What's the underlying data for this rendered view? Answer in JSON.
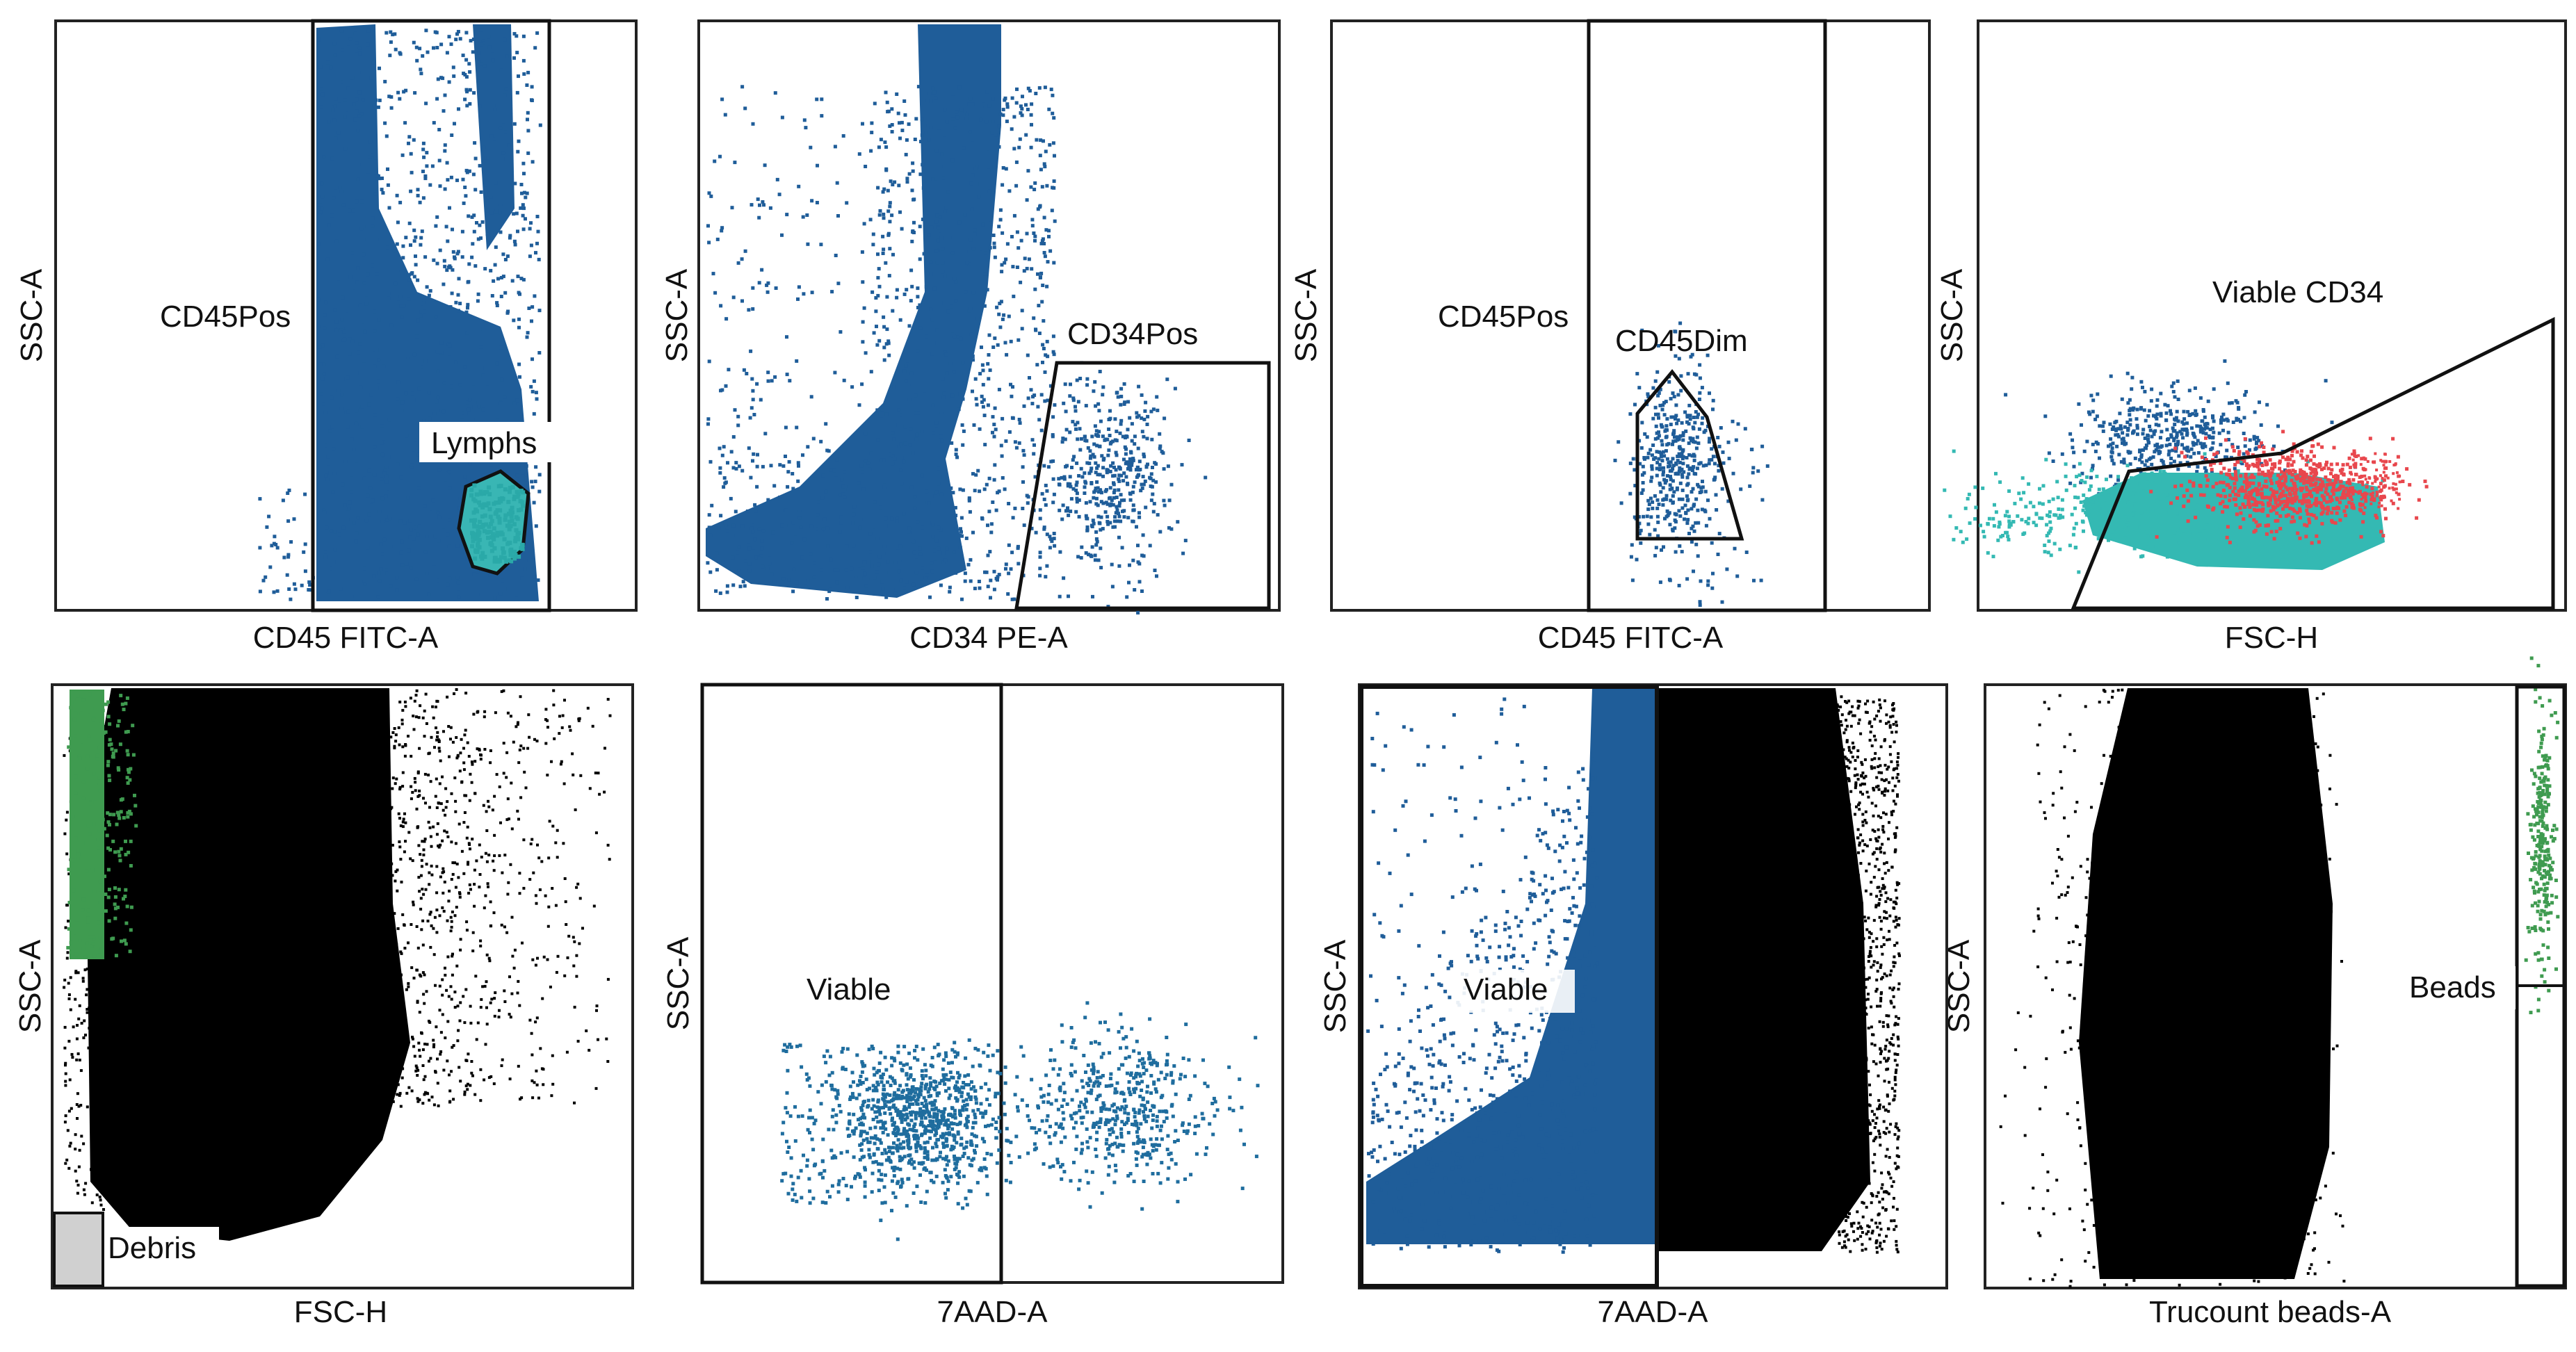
{
  "figure": {
    "panels": [
      {
        "id": "p1",
        "xlabel": "CD45 FITC-A",
        "ylabel": "SSC-A",
        "gates": [
          {
            "name": "CD45Pos",
            "shape": "rect"
          },
          {
            "name": "Lymphs",
            "shape": "polygon",
            "fill": "#39b6b4"
          }
        ],
        "populations": [
          {
            "name": "CD45 positive events",
            "color": "#1f5d99"
          },
          {
            "name": "Lymphs events",
            "color": "#2aa9a8"
          }
        ]
      },
      {
        "id": "p2",
        "xlabel": "CD34 PE-A",
        "ylabel": "SSC-A",
        "gates": [
          {
            "name": "CD34Pos",
            "shape": "polygon"
          }
        ],
        "populations": [
          {
            "name": "CD45Pos events",
            "color": "#1f5d99"
          }
        ]
      },
      {
        "id": "p3",
        "xlabel": "CD45 FITC-A",
        "ylabel": "SSC-A",
        "gates": [
          {
            "name": "CD45Pos",
            "shape": "rect"
          },
          {
            "name": "CD45Dim",
            "shape": "polygon"
          }
        ],
        "populations": [
          {
            "name": "CD34Pos events",
            "color": "#1f5d99"
          }
        ]
      },
      {
        "id": "p4",
        "xlabel": "FSC-H",
        "ylabel": "SSC-A",
        "gates": [
          {
            "name": "Viable CD34",
            "shape": "polygon"
          }
        ],
        "populations": [
          {
            "name": "CD45Dim events",
            "color": "#1f5d99"
          },
          {
            "name": "Lymphs events",
            "color": "#34b9b3"
          },
          {
            "name": "Viable CD34 events",
            "color": "#e8474d"
          }
        ]
      },
      {
        "id": "p5",
        "xlabel": "FSC-H",
        "ylabel": "SSC-A",
        "gates": [
          {
            "name": "Debris",
            "shape": "rect"
          }
        ],
        "populations": [
          {
            "name": "All events",
            "color": "#000000"
          },
          {
            "name": "Beads events",
            "color": "#3f9b50"
          }
        ]
      },
      {
        "id": "p6",
        "xlabel": "7AAD-A",
        "ylabel": "SSC-A",
        "gates": [
          {
            "name": "Viable",
            "shape": "rect"
          }
        ],
        "populations": [
          {
            "name": "CD34Pos events",
            "color": "#1f6d9e"
          }
        ]
      },
      {
        "id": "p7",
        "xlabel": "7AAD-A",
        "ylabel": "SSC-A",
        "gates": [
          {
            "name": "Viable",
            "shape": "rect"
          }
        ],
        "populations": [
          {
            "name": "All events",
            "color": "#000000"
          },
          {
            "name": "CD45Pos events",
            "color": "#1f5d99"
          }
        ]
      },
      {
        "id": "p8",
        "xlabel": "Trucount beads-A",
        "ylabel": "SSC-A",
        "gates": [
          {
            "name": "Beads",
            "shape": "rect"
          }
        ],
        "populations": [
          {
            "name": "All events",
            "color": "#000000"
          },
          {
            "name": "Beads events",
            "color": "#3f9b50"
          }
        ]
      }
    ]
  },
  "chart_data": [
    {
      "type": "scatter",
      "title": "",
      "xlabel": "CD45 FITC-A",
      "ylabel": "SSC-A",
      "gates": [
        "CD45Pos",
        "Lymphs"
      ]
    },
    {
      "type": "scatter",
      "title": "",
      "xlabel": "CD34 PE-A",
      "ylabel": "SSC-A",
      "gates": [
        "CD34Pos"
      ]
    },
    {
      "type": "scatter",
      "title": "",
      "xlabel": "CD45 FITC-A",
      "ylabel": "SSC-A",
      "gates": [
        "CD45Pos",
        "CD45Dim"
      ]
    },
    {
      "type": "scatter",
      "title": "",
      "xlabel": "FSC-H",
      "ylabel": "SSC-A",
      "gates": [
        "Viable CD34"
      ]
    },
    {
      "type": "scatter",
      "title": "",
      "xlabel": "FSC-H",
      "ylabel": "SSC-A",
      "gates": [
        "Debris"
      ]
    },
    {
      "type": "scatter",
      "title": "",
      "xlabel": "7AAD-A",
      "ylabel": "SSC-A",
      "gates": [
        "Viable"
      ]
    },
    {
      "type": "scatter",
      "title": "",
      "xlabel": "7AAD-A",
      "ylabel": "SSC-A",
      "gates": [
        "Viable"
      ]
    },
    {
      "type": "scatter",
      "title": "",
      "xlabel": "Trucount beads-A",
      "ylabel": "SSC-A",
      "gates": [
        "Beads"
      ]
    }
  ]
}
